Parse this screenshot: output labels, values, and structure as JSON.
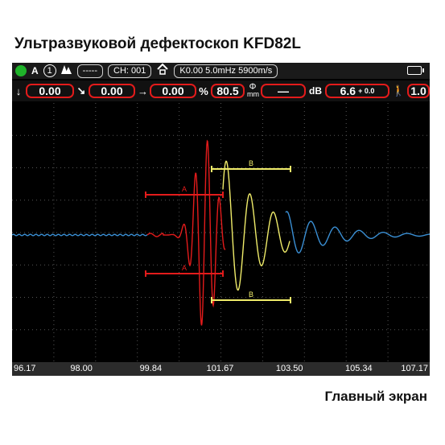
{
  "page_title": "Ультразвуковой дефектоскоп KFD82L",
  "caption": "Главный экран",
  "status_bar": {
    "indicator_color": "#1fb32a",
    "mode_letter": "A",
    "channel_badge": "1",
    "filter_icon": "peaks-icon",
    "dashes": "-----",
    "channel": "CH: 001",
    "probe_icon": "probe-icon",
    "probe_info": "K0.00  5.0mHz  5900m/s",
    "battery_icon": "battery-icon"
  },
  "param_bar": {
    "depth_value": "0.00",
    "surface_value": "0.00",
    "horizontal_value": "0.00",
    "percent_symbol": "%",
    "amplitude_value": "80.5",
    "diameter_symbol": "Φ",
    "diameter_unit": "mm",
    "diameter_value": "—",
    "db_symbol": "dB",
    "gain_value": "6.6",
    "gain_offset": "+ 0.0",
    "speed_value": "1.0"
  },
  "gates": {
    "gate_a_label": "A",
    "gate_b_label": "B",
    "gate_a_color": "#e31b1b",
    "gate_b_color": "#f0ec6a"
  },
  "waveform_colors": {
    "baseline": "#3a8fd4",
    "gate_a_signal": "#e31b1b",
    "gate_b_signal": "#f0ec6a"
  },
  "x_axis": {
    "ticks": [
      "96.17",
      "98.00",
      "99.84",
      "101.67",
      "103.50",
      "105.34",
      "107.17"
    ]
  }
}
